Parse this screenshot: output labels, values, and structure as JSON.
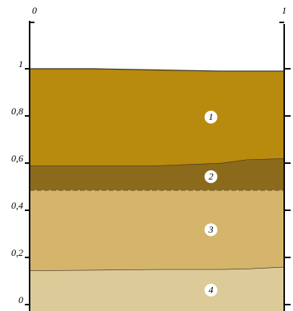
{
  "chart_data": {
    "type": "layers",
    "x": [
      0,
      0.25,
      0.5,
      0.75,
      0.85,
      1
    ],
    "xlim": [
      0,
      1
    ],
    "xticks": [
      0,
      1
    ],
    "ylim": [
      0,
      1
    ],
    "yticks": [
      0,
      {
        "value": 0.2,
        "label": "0,2"
      },
      {
        "value": 0.4,
        "label": "0,4"
      },
      {
        "value": 0.6,
        "label": "0,6"
      },
      {
        "value": 0.8,
        "label": "0,8"
      },
      1
    ],
    "series": [
      {
        "name": "4",
        "color": "#dccb98",
        "values": [
          0.145,
          0.147,
          0.15,
          0.15,
          0.152,
          0.16
        ]
      },
      {
        "name": "3",
        "color": "#d4b56b",
        "values": [
          0.485,
          0.485,
          0.485,
          0.485,
          0.485,
          0.485
        ]
      },
      {
        "name": "2",
        "color": "#8c6a1c",
        "values": [
          0.59,
          0.59,
          0.59,
          0.6,
          0.615,
          0.62
        ]
      },
      {
        "name": "1",
        "color": "#b88a0e",
        "values": [
          1.0,
          1.0,
          0.995,
          0.99,
          0.99,
          0.99
        ]
      }
    ]
  }
}
